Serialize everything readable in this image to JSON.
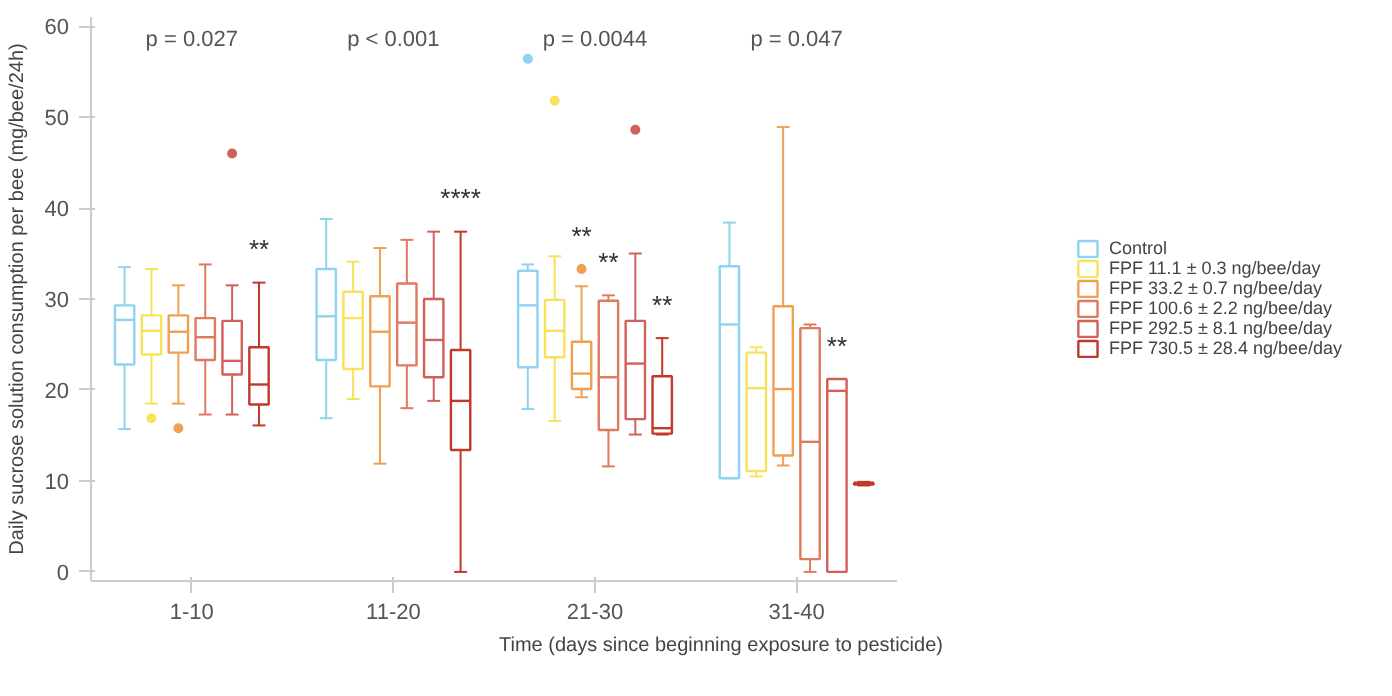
{
  "chart_data": {
    "type": "box",
    "xlabel": "Time (days since beginning exposure to pesticide)",
    "ylabel": "Daily sucrose solution consumption per bee (mg/bee/24h)",
    "categories": [
      "1-10",
      "11-20",
      "21-30",
      "31-40"
    ],
    "ylim": [
      -1,
      61
    ],
    "yticks": [
      0,
      10,
      20,
      30,
      40,
      50,
      60
    ],
    "grid": false,
    "legend": "right",
    "series": [
      {
        "name": "Control",
        "color": "#8fd3f0",
        "boxes": [
          {
            "low": 15.7,
            "q1": 22.8,
            "median": 27.7,
            "q3": 29.3,
            "high": 33.5
          },
          {
            "low": 16.9,
            "q1": 23.3,
            "median": 28.1,
            "q3": 33.3,
            "high": 38.8
          },
          {
            "low": 17.9,
            "q1": 22.5,
            "median": 29.3,
            "q3": 33.1,
            "high": 33.8,
            "outliers": [
              56.4
            ]
          },
          {
            "low": 10.3,
            "q1": 10.3,
            "median": 27.2,
            "q3": 33.6,
            "high": 38.4
          }
        ]
      },
      {
        "name": "FPF 11.1 ± 0.3 ng/bee/day",
        "color": "#f7e35a",
        "boxes": [
          {
            "low": 18.5,
            "q1": 23.9,
            "median": 26.5,
            "q3": 28.2,
            "high": 33.3,
            "outliers": [
              16.9
            ]
          },
          {
            "low": 19.0,
            "q1": 22.3,
            "median": 27.9,
            "q3": 30.8,
            "high": 34.1
          },
          {
            "low": 16.6,
            "q1": 23.6,
            "median": 26.5,
            "q3": 29.9,
            "high": 34.7,
            "outliers": [
              51.8
            ]
          },
          {
            "low": 10.5,
            "q1": 11.1,
            "median": 20.2,
            "q3": 24.1,
            "high": 24.7
          }
        ]
      },
      {
        "name": "FPF 33.2 ± 0.7 ng/bee/day",
        "color": "#f0a050",
        "value_labels": [
          null,
          null,
          "**",
          null
        ],
        "boxes": [
          {
            "low": 18.5,
            "q1": 24.1,
            "median": 26.4,
            "q3": 28.2,
            "high": 31.5,
            "outliers": [
              15.8
            ]
          },
          {
            "low": 11.9,
            "q1": 20.4,
            "median": 26.4,
            "q3": 30.3,
            "high": 35.6
          },
          {
            "low": 19.2,
            "q1": 20.1,
            "median": 21.8,
            "q3": 25.3,
            "high": 31.4,
            "outliers": [
              33.3
            ]
          },
          {
            "low": 11.7,
            "q1": 12.8,
            "median": 20.1,
            "q3": 29.2,
            "high": 48.9
          }
        ]
      },
      {
        "name": "FPF 100.6 ± 2.2 ng/bee/day",
        "color": "#e07a5f",
        "value_labels": [
          null,
          null,
          "**",
          null
        ],
        "boxes": [
          {
            "low": 17.3,
            "q1": 23.3,
            "median": 25.8,
            "q3": 27.9,
            "high": 33.8
          },
          {
            "low": 18.0,
            "q1": 22.7,
            "median": 27.4,
            "q3": 31.7,
            "high": 36.5
          },
          {
            "low": 11.6,
            "q1": 15.6,
            "median": 21.4,
            "q3": 29.8,
            "high": 30.4
          },
          {
            "low": 0,
            "q1": 1.4,
            "median": 14.3,
            "q3": 26.8,
            "high": 27.2
          }
        ]
      },
      {
        "name": "FPF 292.5 ± 8.1 ng/bee/day",
        "color": "#d0605a",
        "value_labels": [
          null,
          null,
          null,
          "**"
        ],
        "boxes": [
          {
            "low": 17.3,
            "q1": 21.7,
            "median": 23.2,
            "q3": 27.6,
            "high": 31.5,
            "outliers": [
              46
            ]
          },
          {
            "low": 18.8,
            "q1": 21.4,
            "median": 25.5,
            "q3": 30.0,
            "high": 37.4
          },
          {
            "low": 15.1,
            "q1": 16.8,
            "median": 22.9,
            "q3": 27.6,
            "high": 35.0,
            "outliers": [
              48.6
            ]
          },
          {
            "low": 0,
            "q1": 0,
            "median": 19.9,
            "q3": 21.2,
            "high": 21.2
          }
        ]
      },
      {
        "name": "FPF 730.5 ± 28.4 ng/bee/day",
        "color": "#c0392b",
        "value_labels": [
          "**",
          "****",
          "**",
          null
        ],
        "boxes": [
          {
            "low": 16.1,
            "q1": 18.4,
            "median": 20.6,
            "q3": 24.7,
            "high": 31.8
          },
          {
            "low": 0,
            "q1": 13.4,
            "median": 18.8,
            "q3": 24.4,
            "high": 37.4
          },
          {
            "low": 15.1,
            "q1": 15.2,
            "median": 15.8,
            "q3": 21.5,
            "high": 25.7
          },
          {
            "low": 9.5,
            "q1": 9.6,
            "median": 9.7,
            "q3": 9.8,
            "high": 9.9
          }
        ]
      }
    ],
    "annotations": [
      "p = 0.027",
      "p < 0.001",
      "p = 0.0044",
      "p = 0.047"
    ]
  }
}
